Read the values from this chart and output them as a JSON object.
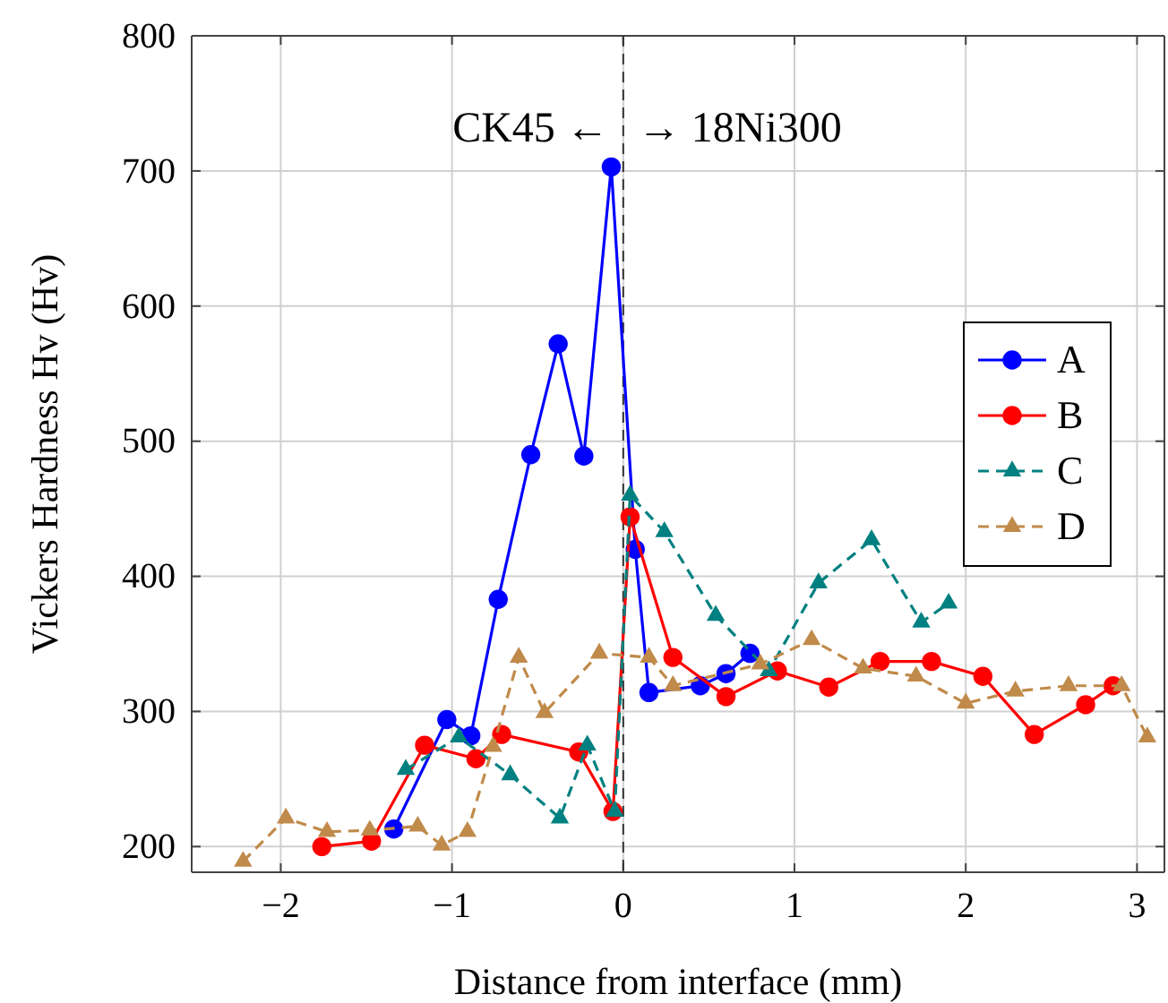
{
  "chart_data": {
    "type": "line",
    "xlabel": "Distance from interface (mm)",
    "ylabel": "Vickers Hardness Hv (Hv)",
    "xlim": [
      -2.52,
      3.16
    ],
    "ylim": [
      181,
      800
    ],
    "xticks": [
      {
        "value": -2,
        "label": "−2"
      },
      {
        "value": -1,
        "label": "−1"
      },
      0,
      1,
      2,
      3
    ],
    "yticks": [
      200,
      300,
      400,
      500,
      600,
      700,
      800
    ],
    "grid": true,
    "legend": "right",
    "annotations": [
      "CK45 ←",
      "→ 18Ni300"
    ],
    "ref_lines": [
      {
        "axis": "x",
        "value": 0,
        "color": "#333333",
        "line_style": "dashed"
      }
    ],
    "series": [
      {
        "name": "A",
        "color": "#0000ff",
        "marker": "circle",
        "line_style": "solid",
        "x": [
          -1.34,
          -1.03,
          -0.89,
          -0.73,
          -0.54,
          -0.38,
          -0.23,
          -0.07,
          0.07,
          0.15,
          0.45,
          0.6,
          0.74
        ],
        "values": [
          213,
          294,
          282,
          383,
          490,
          572,
          489,
          703,
          420,
          314,
          319,
          328,
          343
        ]
      },
      {
        "name": "B",
        "color": "#ff0000",
        "marker": "circle",
        "line_style": "solid",
        "x": [
          -1.76,
          -1.47,
          -1.16,
          -0.86,
          -0.71,
          -0.26,
          -0.06,
          0.04,
          0.29,
          0.6,
          0.9,
          1.2,
          1.5,
          1.8,
          2.1,
          2.4,
          2.7,
          2.86
        ],
        "values": [
          200,
          204,
          275,
          265,
          283,
          270,
          226,
          444,
          340,
          311,
          330,
          318,
          337,
          337,
          326,
          283,
          305,
          319
        ]
      },
      {
        "name": "C",
        "color": "#008080",
        "marker": "triangle",
        "line_style": "dashed",
        "x": [
          -1.27,
          -0.96,
          -0.66,
          -0.37,
          -0.21,
          -0.05,
          0.04,
          0.24,
          0.54,
          0.85,
          1.14,
          1.45,
          1.74,
          1.9
        ],
        "values": [
          257,
          281,
          253,
          221,
          275,
          226,
          460,
          433,
          371,
          330,
          395,
          427,
          366,
          380
        ]
      },
      {
        "name": "D",
        "color": "#c08a4a",
        "marker": "triangle",
        "line_style": "dashed",
        "x": [
          -2.22,
          -1.97,
          -1.73,
          -1.48,
          -1.2,
          -1.06,
          -0.91,
          -0.76,
          -0.61,
          -0.46,
          -0.14,
          0.15,
          0.29,
          0.8,
          1.1,
          1.4,
          1.71,
          2.0,
          2.29,
          2.6,
          2.91,
          3.06
        ],
        "values": [
          189,
          221,
          211,
          212,
          215,
          201,
          211,
          274,
          340,
          299,
          343,
          340,
          319,
          335,
          353,
          332,
          326,
          306,
          315,
          319,
          319,
          281
        ]
      }
    ]
  }
}
